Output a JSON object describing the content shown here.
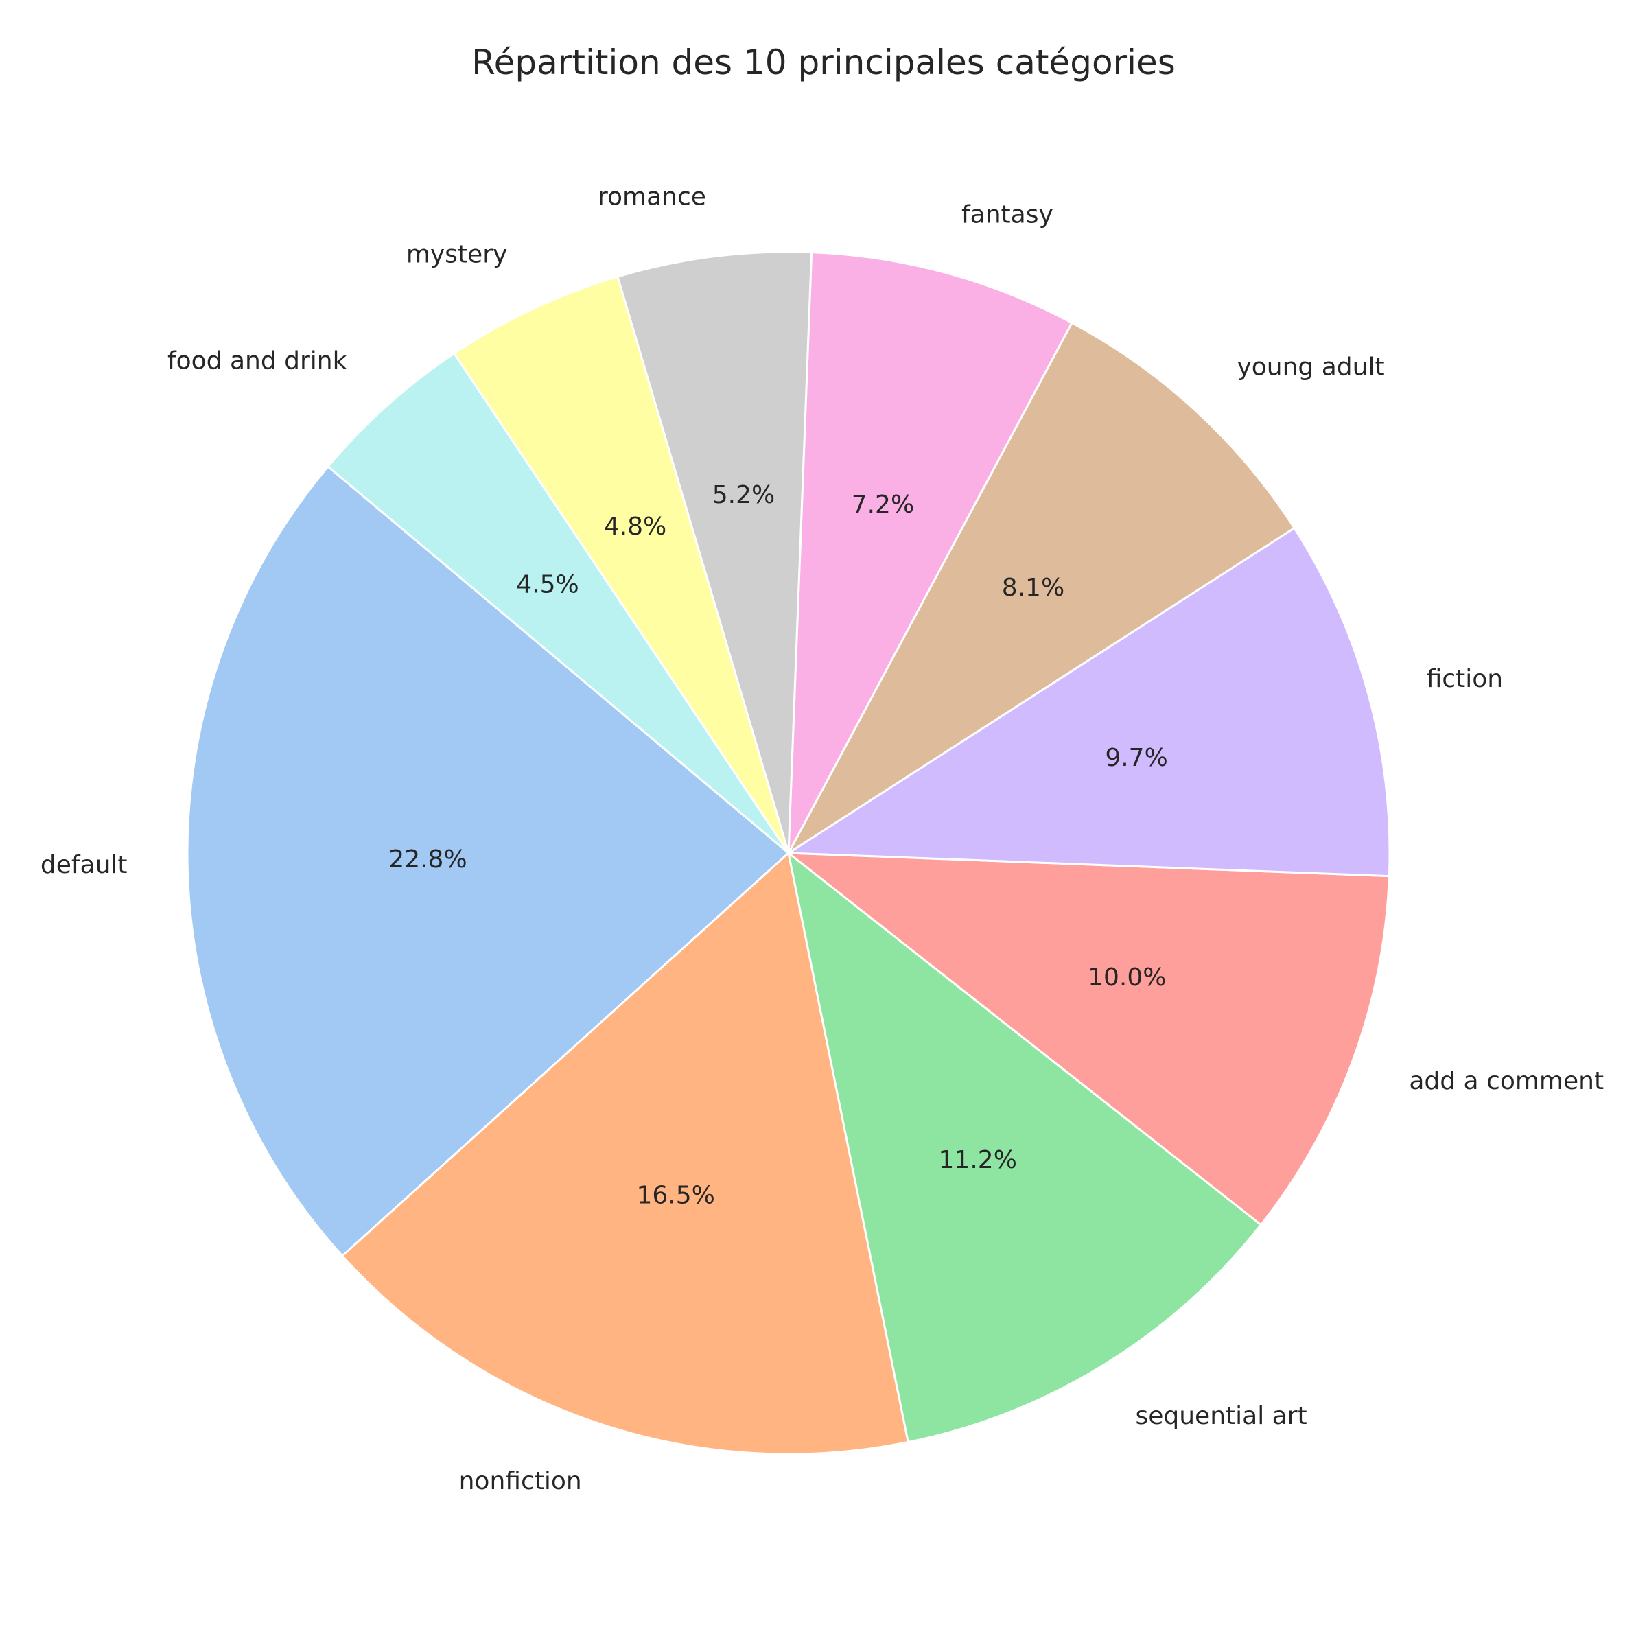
{
  "chart_data": {
    "type": "pie",
    "title": "Répartition des 10 principales catégories",
    "categories": [
      "default",
      "nonfiction",
      "sequential art",
      "add a comment",
      "fiction",
      "young adult",
      "fantasy",
      "romance",
      "mystery",
      "food and drink"
    ],
    "values": [
      22.8,
      16.5,
      11.2,
      10.0,
      9.7,
      8.1,
      7.2,
      5.2,
      4.8,
      4.5
    ],
    "value_labels": [
      "22.8%",
      "16.5%",
      "11.2%",
      "10.0%",
      "9.7%",
      "8.1%",
      "7.2%",
      "5.2%",
      "4.8%",
      "4.5%"
    ],
    "colors": [
      "#a1c9f4",
      "#ffb482",
      "#8de5a1",
      "#ff9f9b",
      "#d0bbff",
      "#debb9b",
      "#fab0e4",
      "#cfcfcf",
      "#fffea3",
      "#b9f2f0"
    ],
    "start_angle_deg": 140,
    "direction": "counterclockwise",
    "legend": "none",
    "wedge_edge_color": "#ffffff"
  }
}
